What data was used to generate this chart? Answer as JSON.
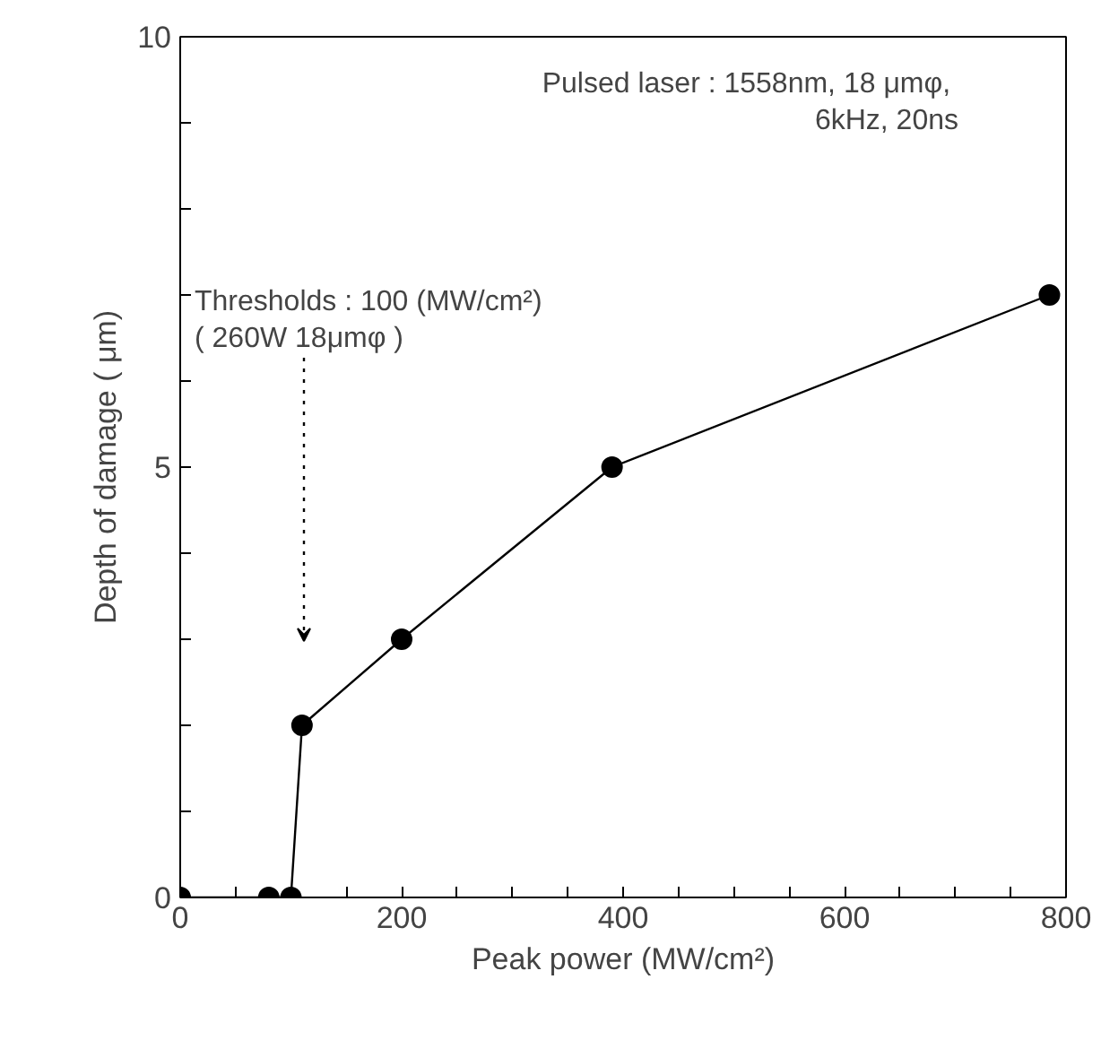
{
  "chart_data": {
    "type": "line",
    "xlabel": "Peak power (MW/cm²)",
    "ylabel": "Depth of damage ( μm)",
    "x": [
      0,
      80,
      100,
      110,
      200,
      390,
      785
    ],
    "values": [
      0,
      0,
      0,
      2,
      3,
      5,
      7
    ],
    "color": "#000000",
    "marker": "circle",
    "line_style": "solid",
    "grid": false,
    "xlim": [
      0,
      800
    ],
    "ylim": [
      0,
      10
    ],
    "xticks": [
      0,
      {
        "value": 50,
        "label": null
      },
      {
        "value": 100,
        "label": null
      },
      {
        "value": 150,
        "label": null
      },
      200,
      {
        "value": 250,
        "label": null
      },
      {
        "value": 300,
        "label": null
      },
      {
        "value": 350,
        "label": null
      },
      400,
      {
        "value": 450,
        "label": null
      },
      {
        "value": 500,
        "label": null
      },
      {
        "value": 550,
        "label": null
      },
      600,
      {
        "value": 650,
        "label": null
      },
      {
        "value": 700,
        "label": null
      },
      {
        "value": 750,
        "label": null
      },
      800
    ],
    "yticks": [
      0,
      {
        "value": 1,
        "label": null
      },
      {
        "value": 2,
        "label": null
      },
      {
        "value": 3,
        "label": null
      },
      {
        "value": 4,
        "label": null
      },
      5,
      {
        "value": 6,
        "label": null
      },
      {
        "value": 7,
        "label": null
      },
      {
        "value": 8,
        "label": null
      },
      {
        "value": 9,
        "label": null
      },
      10
    ],
    "annotations": [
      "Pulsed  laser : 1558nm, 18 μmφ,\n6kHz, 20ns",
      "Thresholds : 100 (MW/cm²)\n( 260W 18μmφ )"
    ]
  }
}
